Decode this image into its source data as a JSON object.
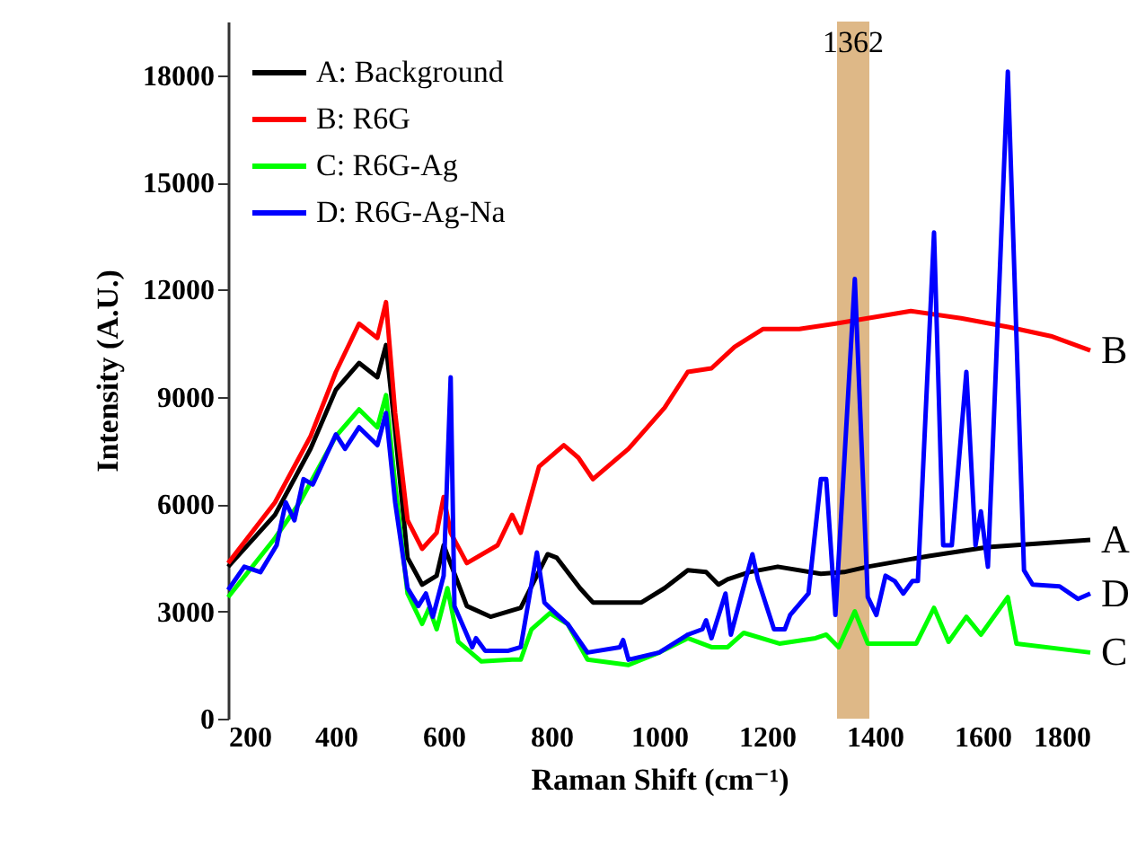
{
  "chart_data": {
    "type": "line",
    "xlabel": "Raman Shift (cm⁻¹)",
    "ylabel": "Intensity (A.U.)",
    "xlim": [
      200,
      1800
    ],
    "ylim": [
      0,
      19500
    ],
    "xticks": [
      200,
      400,
      600,
      800,
      1000,
      1200,
      1400,
      1600,
      1800
    ],
    "yticks": [
      0,
      3000,
      6000,
      9000,
      12000,
      15000,
      18000
    ],
    "grid": false,
    "legend": "top left",
    "marker": "none",
    "line_style": "solid",
    "series": [
      {
        "name": "A: Background",
        "color": "#000000",
        "x": [
          200,
          287,
          353,
          400,
          443,
          477,
          493,
          510,
          533,
          560,
          587,
          600,
          643,
          687,
          743,
          793,
          810,
          853,
          877,
          967,
          1010,
          1053,
          1087,
          1110,
          1127,
          1167,
          1220,
          1300,
          1343,
          1387,
          1500,
          1610,
          1800
        ],
        "values": [
          4250,
          5700,
          7550,
          9200,
          9950,
          9550,
          10450,
          8050,
          4500,
          3750,
          4000,
          4850,
          3150,
          2850,
          3100,
          4600,
          4500,
          3650,
          3250,
          3250,
          3650,
          4150,
          4100,
          3750,
          3900,
          4100,
          4250,
          4050,
          4100,
          4250,
          4550,
          4800,
          5000
        ]
      },
      {
        "name": "B: R6G",
        "color": "#ff0000",
        "x": [
          200,
          287,
          353,
          400,
          443,
          477,
          493,
          510,
          533,
          560,
          587,
          600,
          613,
          643,
          700,
          727,
          743,
          777,
          823,
          850,
          877,
          943,
          1010,
          1053,
          1097,
          1140,
          1193,
          1260,
          1327,
          1387,
          1467,
          1560,
          1650,
          1727,
          1800
        ],
        "values": [
          4350,
          6050,
          7900,
          9700,
          11050,
          10650,
          11650,
          8550,
          5550,
          4750,
          5200,
          6200,
          5200,
          4350,
          4850,
          5700,
          5200,
          7050,
          7650,
          7300,
          6700,
          7550,
          8700,
          9700,
          9800,
          10400,
          10900,
          10900,
          11050,
          11200,
          11400,
          11200,
          10950,
          10700,
          10300
        ]
      },
      {
        "name": "C: R6G-Ag",
        "color": "#00ff00",
        "x": [
          200,
          287,
          333,
          400,
          443,
          477,
          493,
          510,
          533,
          560,
          573,
          587,
          607,
          627,
          670,
          727,
          743,
          763,
          797,
          830,
          867,
          943,
          1000,
          1053,
          1097,
          1127,
          1157,
          1223,
          1290,
          1310,
          1333,
          1363,
          1387,
          1477,
          1510,
          1537,
          1570,
          1597,
          1647,
          1663,
          1800
        ],
        "values": [
          3400,
          5050,
          6050,
          7900,
          8650,
          8150,
          9050,
          6550,
          3500,
          2650,
          3100,
          2500,
          3650,
          2150,
          1600,
          1650,
          1650,
          2500,
          2950,
          2650,
          1650,
          1500,
          1850,
          2250,
          2000,
          2000,
          2400,
          2100,
          2250,
          2350,
          2000,
          3000,
          2100,
          2100,
          3100,
          2150,
          2850,
          2350,
          3400,
          2100,
          1850
        ]
      },
      {
        "name": "D: R6G-Ag-Na",
        "color": "#0000ff",
        "x": [
          200,
          230,
          260,
          290,
          307,
          323,
          340,
          357,
          400,
          417,
          443,
          477,
          493,
          510,
          533,
          553,
          567,
          580,
          600,
          613,
          620,
          643,
          653,
          660,
          677,
          720,
          743,
          773,
          787,
          797,
          830,
          867,
          927,
          933,
          943,
          1000,
          1053,
          1080,
          1087,
          1097,
          1123,
          1133,
          1173,
          1183,
          1213,
          1233,
          1243,
          1277,
          1300,
          1310,
          1327,
          1363,
          1387,
          1403,
          1420,
          1437,
          1453,
          1470,
          1480,
          1510,
          1527,
          1543,
          1570,
          1587,
          1597,
          1610,
          1647,
          1677,
          1693,
          1743,
          1777,
          1800
        ],
        "values": [
          3600,
          4250,
          4100,
          4850,
          6050,
          5550,
          6700,
          6550,
          7950,
          7550,
          8150,
          7650,
          8550,
          6050,
          3650,
          3150,
          3500,
          2850,
          4000,
          9550,
          3150,
          2350,
          2000,
          2250,
          1900,
          1900,
          2000,
          4650,
          3250,
          3100,
          2650,
          1850,
          2000,
          2200,
          1650,
          1850,
          2350,
          2500,
          2750,
          2250,
          3500,
          2350,
          4600,
          3900,
          2500,
          2500,
          2900,
          3500,
          6700,
          6700,
          2900,
          12300,
          3400,
          2900,
          4000,
          3850,
          3500,
          3850,
          3850,
          13600,
          4850,
          4850,
          9700,
          4850,
          5800,
          4250,
          18100,
          4150,
          3750,
          3700,
          3350,
          3500
        ]
      }
    ],
    "bands": [
      {
        "axis": "x",
        "from": 1330,
        "to": 1390,
        "label": "1362",
        "color": "#deb887"
      }
    ],
    "annotations": [
      "A",
      "B",
      "C",
      "D"
    ]
  }
}
